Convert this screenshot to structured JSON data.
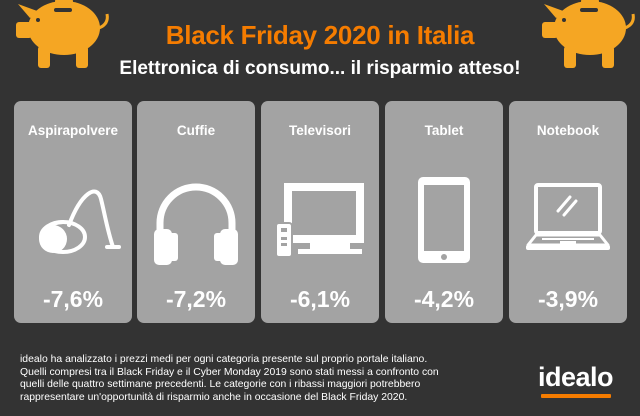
{
  "header": {
    "title": "Black Friday 2020 in Italia",
    "subtitle": "Elettronica di consumo... il risparmio atteso!"
  },
  "cards": [
    {
      "label": "Aspirapolvere",
      "icon": "vacuum-cleaner-icon",
      "value": "-7,6%"
    },
    {
      "label": "Cuffie",
      "icon": "headphones-icon",
      "value": "-7,2%"
    },
    {
      "label": "Televisori",
      "icon": "television-icon",
      "value": "-6,1%"
    },
    {
      "label": "Tablet",
      "icon": "tablet-icon",
      "value": "-4,2%"
    },
    {
      "label": "Notebook",
      "icon": "notebook-icon",
      "value": "-3,9%"
    }
  ],
  "footer": {
    "line1": "idealo ha analizzato i prezzi medi per ogni categoria presente sul proprio portale italiano.",
    "line2": "Quelli compresi tra il Black Friday e il Cyber Monday 2019 sono stati messi a confronto con",
    "line3": "quelli delle quattro settimane precedenti. Le categorie con i ribassi maggiori potrebbero",
    "line4": "rappresentare un'opportunità di risparmio anche in occasione del Black Friday 2020."
  },
  "brand": {
    "name": "idealo"
  },
  "colors": {
    "background": "#333333",
    "accent": "#f57c00",
    "card": "#a3a3a3",
    "text": "#ffffff"
  },
  "decorations": [
    "piggy-bank-icon",
    "piggy-bank-icon"
  ]
}
